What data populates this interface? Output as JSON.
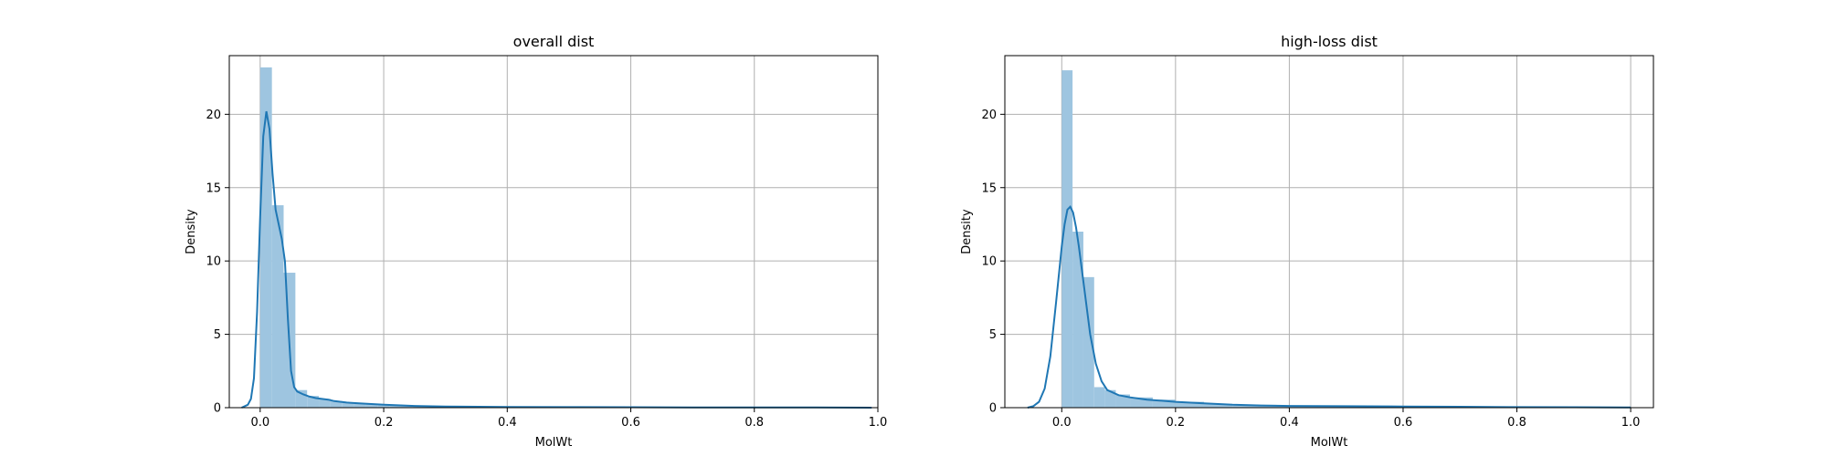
{
  "chart_data": [
    {
      "type": "bar",
      "title": "overall dist",
      "xlabel": "MolWt",
      "ylabel": "Density",
      "xlim": [
        -0.05,
        1.0
      ],
      "ylim": [
        0,
        24
      ],
      "xticks": [
        0.0,
        0.2,
        0.4,
        0.6,
        0.8,
        1.0
      ],
      "xtick_labels": [
        "0.0",
        "0.2",
        "0.4",
        "0.6",
        "0.8",
        "1.0"
      ],
      "yticks": [
        0,
        5,
        10,
        15,
        20
      ],
      "ytick_labels": [
        "0",
        "5",
        "10",
        "15",
        "20"
      ],
      "grid": true,
      "bar_color": "#9ec5e0",
      "line_color": "#1f77b4",
      "bins": [
        {
          "x0": 0.0,
          "x1": 0.019,
          "y": 23.2
        },
        {
          "x0": 0.019,
          "x1": 0.038,
          "y": 13.8
        },
        {
          "x0": 0.038,
          "x1": 0.057,
          "y": 9.2
        },
        {
          "x0": 0.057,
          "x1": 0.076,
          "y": 1.2
        },
        {
          "x0": 0.076,
          "x1": 0.095,
          "y": 0.8
        },
        {
          "x0": 0.095,
          "x1": 0.114,
          "y": 0.6
        },
        {
          "x0": 0.114,
          "x1": 0.133,
          "y": 0.45
        },
        {
          "x0": 0.133,
          "x1": 0.152,
          "y": 0.35
        },
        {
          "x0": 0.152,
          "x1": 0.171,
          "y": 0.3
        },
        {
          "x0": 0.171,
          "x1": 0.19,
          "y": 0.25
        },
        {
          "x0": 0.19,
          "x1": 0.209,
          "y": 0.22
        },
        {
          "x0": 0.209,
          "x1": 0.228,
          "y": 0.18
        },
        {
          "x0": 0.228,
          "x1": 0.247,
          "y": 0.15
        },
        {
          "x0": 0.247,
          "x1": 0.266,
          "y": 0.13
        },
        {
          "x0": 0.266,
          "x1": 0.285,
          "y": 0.11
        },
        {
          "x0": 0.285,
          "x1": 0.304,
          "y": 0.09
        },
        {
          "x0": 0.304,
          "x1": 0.342,
          "y": 0.07
        },
        {
          "x0": 0.342,
          "x1": 0.4,
          "y": 0.06
        },
        {
          "x0": 0.4,
          "x1": 0.5,
          "y": 0.05
        },
        {
          "x0": 0.5,
          "x1": 0.6,
          "y": 0.04
        },
        {
          "x0": 0.6,
          "x1": 0.7,
          "y": 0.03
        },
        {
          "x0": 0.7,
          "x1": 0.85,
          "y": 0.02
        },
        {
          "x0": 0.85,
          "x1": 0.987,
          "y": 0.01
        }
      ],
      "kde": {
        "x": [
          -0.03,
          -0.02,
          -0.015,
          -0.01,
          -0.005,
          0.0,
          0.005,
          0.01,
          0.015,
          0.02,
          0.025,
          0.03,
          0.035,
          0.04,
          0.045,
          0.05,
          0.055,
          0.06,
          0.07,
          0.08,
          0.09,
          0.1,
          0.11,
          0.12,
          0.14,
          0.16,
          0.2,
          0.25,
          0.3,
          0.4,
          0.5,
          0.6,
          0.7,
          0.8,
          0.9,
          0.99
        ],
        "y": [
          0.0,
          0.2,
          0.6,
          2.0,
          6.5,
          13.0,
          18.5,
          20.2,
          19.0,
          16.0,
          13.5,
          12.5,
          11.5,
          10.0,
          6.0,
          2.5,
          1.4,
          1.1,
          0.9,
          0.75,
          0.65,
          0.6,
          0.55,
          0.45,
          0.35,
          0.3,
          0.2,
          0.12,
          0.08,
          0.05,
          0.04,
          0.03,
          0.02,
          0.015,
          0.01,
          0.0
        ]
      }
    },
    {
      "type": "bar",
      "title": "high-loss dist",
      "xlabel": "MolWt",
      "ylabel": "Density",
      "xlim": [
        -0.1,
        1.04
      ],
      "ylim": [
        0,
        24
      ],
      "xticks": [
        0.0,
        0.2,
        0.4,
        0.6,
        0.8,
        1.0
      ],
      "xtick_labels": [
        "0.0",
        "0.2",
        "0.4",
        "0.6",
        "0.8",
        "1.0"
      ],
      "yticks": [
        0,
        5,
        10,
        15,
        20
      ],
      "ytick_labels": [
        "0",
        "5",
        "10",
        "15",
        "20"
      ],
      "grid": true,
      "bar_color": "#9ec5e0",
      "line_color": "#1f77b4",
      "bins": [
        {
          "x0": 0.0,
          "x1": 0.019,
          "y": 23.0
        },
        {
          "x0": 0.019,
          "x1": 0.038,
          "y": 12.0
        },
        {
          "x0": 0.038,
          "x1": 0.057,
          "y": 8.9
        },
        {
          "x0": 0.057,
          "x1": 0.076,
          "y": 1.4
        },
        {
          "x0": 0.076,
          "x1": 0.095,
          "y": 1.2
        },
        {
          "x0": 0.095,
          "x1": 0.12,
          "y": 0.9
        },
        {
          "x0": 0.12,
          "x1": 0.16,
          "y": 0.7
        },
        {
          "x0": 0.16,
          "x1": 0.2,
          "y": 0.55
        },
        {
          "x0": 0.2,
          "x1": 0.25,
          "y": 0.4
        },
        {
          "x0": 0.25,
          "x1": 0.3,
          "y": 0.25
        },
        {
          "x0": 0.3,
          "x1": 0.4,
          "y": 0.15
        },
        {
          "x0": 0.4,
          "x1": 0.5,
          "y": 0.1
        },
        {
          "x0": 0.5,
          "x1": 0.6,
          "y": 0.1
        },
        {
          "x0": 0.6,
          "x1": 0.8,
          "y": 0.06
        },
        {
          "x0": 0.8,
          "x1": 1.0,
          "y": 0.04
        }
      ],
      "kde": {
        "x": [
          -0.06,
          -0.05,
          -0.04,
          -0.03,
          -0.02,
          -0.01,
          0.0,
          0.005,
          0.01,
          0.015,
          0.02,
          0.025,
          0.03,
          0.04,
          0.05,
          0.06,
          0.07,
          0.08,
          0.1,
          0.12,
          0.15,
          0.2,
          0.25,
          0.3,
          0.35,
          0.4,
          0.5,
          0.6,
          0.7,
          0.8,
          0.9,
          1.0
        ],
        "y": [
          0.0,
          0.1,
          0.4,
          1.3,
          3.5,
          7.2,
          11.0,
          12.5,
          13.5,
          13.7,
          13.3,
          12.3,
          11.0,
          8.0,
          5.0,
          3.0,
          1.8,
          1.2,
          0.85,
          0.7,
          0.55,
          0.4,
          0.3,
          0.2,
          0.15,
          0.12,
          0.1,
          0.08,
          0.06,
          0.04,
          0.03,
          0.01
        ]
      }
    }
  ]
}
